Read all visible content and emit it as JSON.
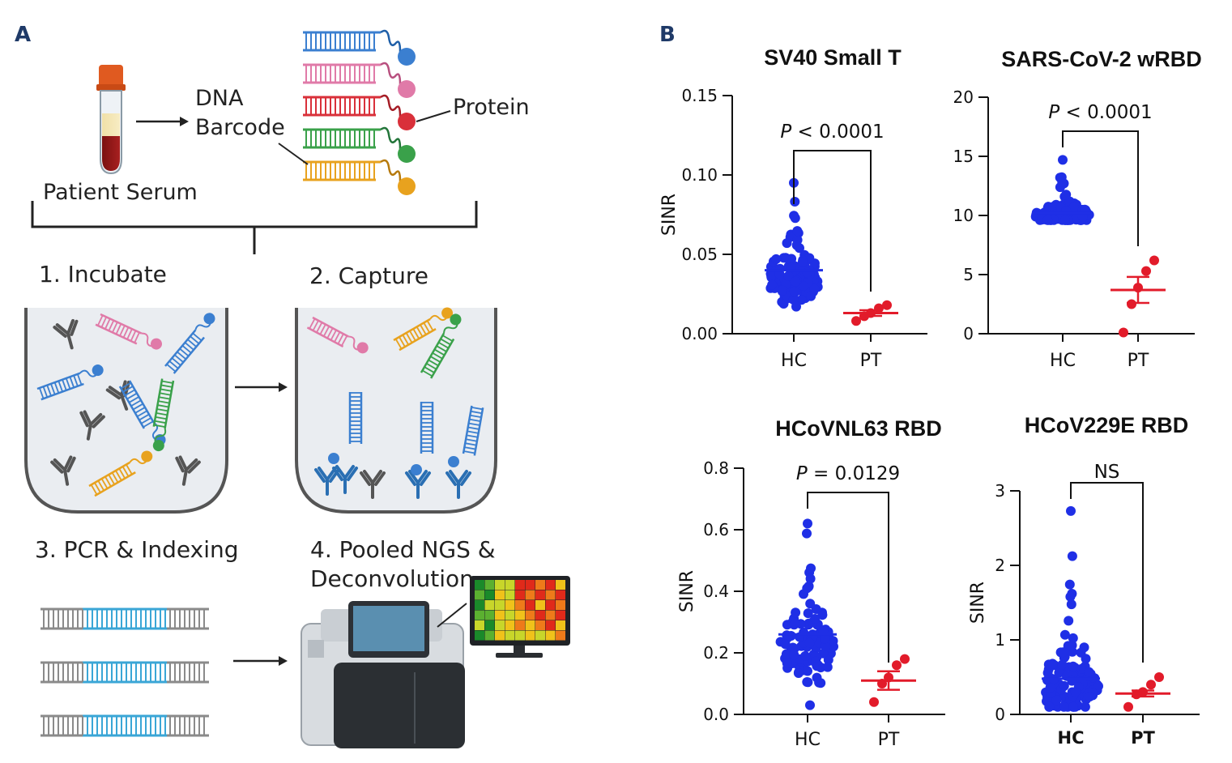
{
  "panel_a": {
    "label": "A",
    "dna_barcode_line1": "DNA",
    "dna_barcode_line2": "Barcode",
    "protein": "Protein",
    "patient_serum": "Patient Serum",
    "step1": "1.  Incubate",
    "step2": "2. Capture",
    "step3": "3. PCR & Indexing",
    "step4_line1": "4. Pooled NGS &",
    "step4_line2": "Deconvolution",
    "colors": {
      "blue": "#3b7fd0",
      "pink": "#e07aa8",
      "red": "#d9303a",
      "green": "#3aa14a",
      "yellow": "#e8a21e",
      "gray_ab": "#555555",
      "blue_ab": "#2a6fb3"
    }
  },
  "panel_b": {
    "label": "B"
  },
  "chart_data": [
    {
      "type": "scatter",
      "title": "SV40 Small T",
      "ylabel": "SINR",
      "categories": [
        "HC",
        "PT"
      ],
      "ylim": [
        0,
        0.15
      ],
      "yticks": [
        "0.00",
        "0.05",
        "0.10",
        "0.15"
      ],
      "ytick_values": [
        0,
        0.05,
        0.1,
        0.15
      ],
      "significance": {
        "prefix": "P",
        "text": " < 0.0001"
      },
      "series": [
        {
          "name": "HC",
          "color": "#1f2fe6",
          "mean": 0.04,
          "min": 0.017,
          "max": 0.095,
          "center": 0.036,
          "count": 110
        },
        {
          "name": "PT",
          "color": "#e21b2a",
          "mean": 0.013,
          "sem": 0.0018,
          "values": [
            0.008,
            0.011,
            0.013,
            0.016,
            0.018
          ]
        }
      ]
    },
    {
      "type": "scatter",
      "title": "SARS-CoV-2 wRBD",
      "ylabel": "",
      "categories": [
        "HC",
        "PT"
      ],
      "ylim": [
        0,
        20
      ],
      "yticks": [
        "0",
        "5",
        "10",
        "15",
        "20"
      ],
      "ytick_values": [
        0,
        5,
        10,
        15,
        20
      ],
      "significance": {
        "prefix": "P",
        "text": " < 0.0001"
      },
      "series": [
        {
          "name": "HC",
          "color": "#1f2fe6",
          "mean": 10.2,
          "min": 9.6,
          "max": 14.7,
          "center": 10.0,
          "count": 110
        },
        {
          "name": "PT",
          "color": "#e21b2a",
          "mean": 3.7,
          "sem": 1.1,
          "values": [
            0.1,
            2.5,
            3.9,
            5.3,
            6.2
          ]
        }
      ]
    },
    {
      "type": "scatter",
      "title": "HCoVNL63 RBD",
      "ylabel": "SINR",
      "categories": [
        "HC",
        "PT"
      ],
      "ylim": [
        0,
        0.8
      ],
      "yticks": [
        "0.0",
        "0.2",
        "0.4",
        "0.6",
        "0.8"
      ],
      "ytick_values": [
        0,
        0.2,
        0.4,
        0.6,
        0.8
      ],
      "significance": {
        "prefix": "P",
        "text": " = 0.0129"
      },
      "series": [
        {
          "name": "HC",
          "color": "#1f2fe6",
          "mean": 0.26,
          "min": 0.03,
          "max": 0.62,
          "center": 0.22,
          "count": 110
        },
        {
          "name": "PT",
          "color": "#e21b2a",
          "mean": 0.11,
          "sem": 0.03,
          "values": [
            0.04,
            0.1,
            0.12,
            0.16,
            0.18
          ]
        }
      ]
    },
    {
      "type": "scatter",
      "title": "HCoV229E RBD",
      "ylabel": "SINR",
      "categories": [
        "HC",
        "PT"
      ],
      "bold_categories": true,
      "ylim": [
        0,
        3
      ],
      "yticks": [
        "0",
        "1",
        "2",
        "3"
      ],
      "ytick_values": [
        0,
        1,
        2,
        3
      ],
      "significance": {
        "prefix": "",
        "text": "NS"
      },
      "series": [
        {
          "name": "HC",
          "color": "#1f2fe6",
          "mean": 0.48,
          "min": 0.1,
          "max": 2.73,
          "center": 0.38,
          "count": 110
        },
        {
          "name": "PT",
          "color": "#e21b2a",
          "mean": 0.28,
          "sem": 0.04,
          "values": [
            0.1,
            0.27,
            0.3,
            0.4,
            0.5
          ]
        }
      ]
    }
  ]
}
